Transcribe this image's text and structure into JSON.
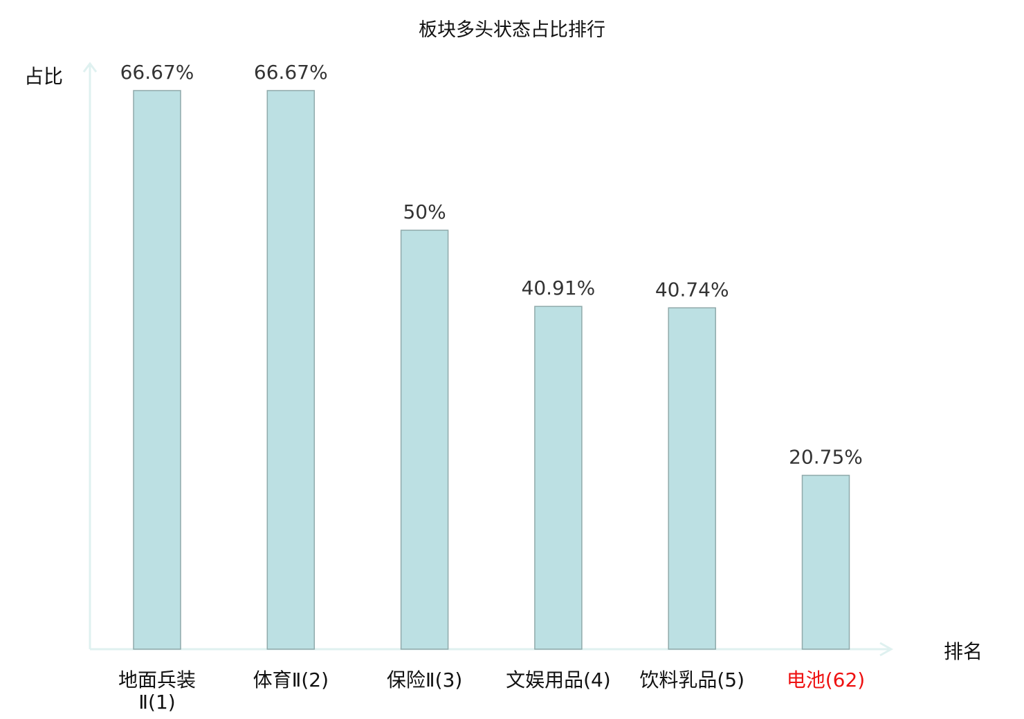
{
  "chart_data": {
    "type": "bar",
    "title": "板块多头状态占比排行",
    "ylabel": "占比",
    "xlabel": "排名",
    "categories": [
      "地面兵装Ⅱ(1)",
      "体育Ⅱ(2)",
      "保险Ⅱ(3)",
      "文娱用品(4)",
      "饮料乳品(5)",
      "电池(62)"
    ],
    "category_lines": [
      [
        "地面兵装",
        "Ⅱ(1)"
      ],
      [
        "体育Ⅱ(2)"
      ],
      [
        "保险Ⅱ(3)"
      ],
      [
        "文娱用品(4)"
      ],
      [
        "饮料乳品(5)"
      ],
      [
        "电池(62)"
      ]
    ],
    "values": [
      66.67,
      66.67,
      50,
      40.91,
      40.74,
      20.75
    ],
    "data_labels": [
      "66.67%",
      "66.67%",
      "50%",
      "40.91%",
      "40.74%",
      "20.75%"
    ],
    "highlight_index": 5,
    "ylim": [
      0,
      70
    ],
    "grid": false,
    "colors": {
      "bar_fill": "#bce0e3",
      "bar_stroke": "#8fa9aa",
      "axis": "#dff1f0",
      "label_text": "#333333",
      "highlight_text": "#ee1111"
    }
  }
}
